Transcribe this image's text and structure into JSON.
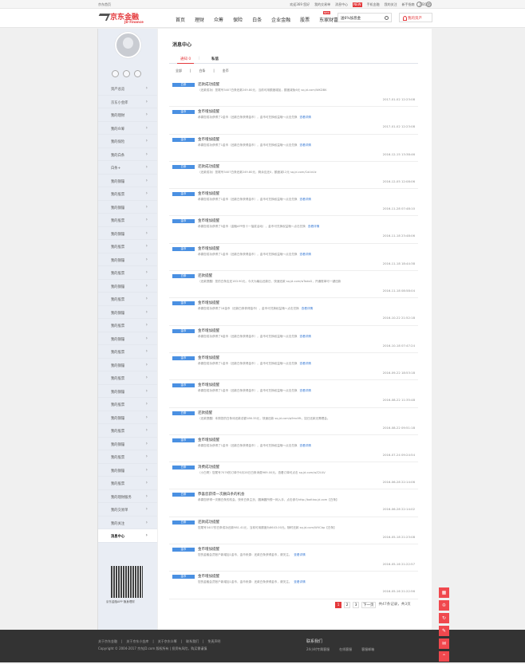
{
  "topbar": {
    "home": "京东首页",
    "links": [
      "欢迎369 您好",
      "我的交易单",
      "消息中心",
      "手机金融",
      "我的关注",
      "新手指南",
      "JTB导航"
    ],
    "new_badge": "NEW"
  },
  "header": {
    "logo_cn": "京东金融",
    "logo_en": "JD Finance",
    "nav": [
      "首页",
      "理财",
      "众筹",
      "保险",
      "白条",
      "企业金融",
      "股票",
      "东家财富"
    ],
    "nav_badge": "NEW",
    "search_value": "送6%加息金",
    "asset_button": "我的资产"
  },
  "sidebar": {
    "items": [
      "资产总览",
      "京东小金库",
      "我的理财",
      "我的众筹",
      "我的保险",
      "我的白条",
      "白条+",
      "我的钢镚",
      "我的股票",
      "我的钢镚",
      "我的股票",
      "我的钢镚",
      "我的股票",
      "我的钢镚",
      "我的股票",
      "我的钢镚",
      "我的股票",
      "我的钢镚",
      "我的股票",
      "我的钢镚",
      "我的股票",
      "我的钢镚",
      "我的股票",
      "我的钢镚",
      "我的股票",
      "我的钢镚",
      "我的股票",
      "我的钢镚",
      "我的股票",
      "我的钢镚",
      "我的股票",
      "我的理财服务",
      "我的交易单",
      "我的关注",
      "消息中心"
    ],
    "active": "消息中心",
    "qr_caption": "京东金融APP 随身理财"
  },
  "main": {
    "title": "消息中心",
    "tabs": {
      "notice": "通知 0",
      "private": "私信"
    },
    "filters": [
      "全部",
      "白条",
      "金币"
    ],
    "messages": [
      {
        "tag": "白条",
        "title": "还款成功提醒",
        "body": "（还款成功）您尾号3407白条还款249.80元，当前可用额度增加，额度减免6元 sq.jd.com/WKDBK",
        "link": "",
        "time": "2017-01-02 12:23:08"
      },
      {
        "tag": "金币",
        "title": "金币增加提醒",
        "body": "恭喜您成功获得了2金币（还款白条获得金币），金币可兑换权益哦～点击兑换",
        "link": "查看详情",
        "time": "2017-01-02 12:23:08"
      },
      {
        "tag": "金币",
        "title": "金币增加提醒",
        "body": "恭喜您成功获得了1金币（还款白条获得金币），金币可兑换权益哦～点击兑换",
        "link": "查看详情",
        "time": "2016-12-15 13:38:46"
      },
      {
        "tag": "白条",
        "title": "还款成功提醒",
        "body": "（还款成功）您尾号3407白条还款249.80元，剩余应还0，额度减12元 sq.jd.com/CoUvUz",
        "link": "",
        "time": "2016-12-05 12:08:06"
      },
      {
        "tag": "金币",
        "title": "金币增加提醒",
        "body": "恭喜您成功获得了1金币（还款白条获得金币），金币可兑换权益哦～点击兑换",
        "link": "查看详情",
        "time": "2016-11-28 07:48:10"
      },
      {
        "tag": "金币",
        "title": "金币增加提醒",
        "body": "恭喜您成功获得了5金币（金融APP双十一抽奖活动），金币可兑换权益哦～点击兑换",
        "link": "查看详情",
        "time": "2016-11-18 23:48:06"
      },
      {
        "tag": "金币",
        "title": "金币增加提醒",
        "body": "恭喜您成功获得了1金币（还款白条获得金币），金币可兑换权益哦～点击兑换",
        "link": "查看详情",
        "time": "2016-11-18 18:44:38"
      },
      {
        "tag": "白条",
        "title": "还款提醒",
        "body": "（还款提醒）您的白条应还183.90元，今天为最后还款日，快速还款 sq.jd.com/wTodoG，开通账单可一键还款",
        "link": "",
        "time": "2016-11-18 08:58:04"
      },
      {
        "tag": "金币",
        "title": "金币增加提醒",
        "body": "恭喜您成功获得了18金币（还款白条获得金币），金币可兑换权益哦～点击兑换",
        "link": "查看详情",
        "time": "2016-10-22 21:52:18"
      },
      {
        "tag": "金币",
        "title": "金币增加提醒",
        "body": "恭喜您成功获得了6金币（还款白条获得金币），金币可兑换权益哦～点击兑换",
        "link": "查看详情",
        "time": "2016-10-18 07:47:24"
      },
      {
        "tag": "金币",
        "title": "金币增加提醒",
        "body": "恭喜您成功获得了1金币（还款白条获得金币），金币可兑换权益哦～点击兑换",
        "link": "查看详情",
        "time": "2016-09-22 18:53:18"
      },
      {
        "tag": "金币",
        "title": "金币增加提醒",
        "body": "恭喜您成功获得了1金币（还款白条获得金币），金币可兑换权益哦～点击兑换",
        "link": "查看详情",
        "time": "2016-08-22 11:35:48"
      },
      {
        "tag": "白条",
        "title": "还款提醒",
        "body": "（还款提醒）本周您的白条待还款总额186.35元，快速还款 sq.jd.com/q9mcMt，如已还款无需理会。",
        "link": "",
        "time": "2016-08-22 09:51:18"
      },
      {
        "tag": "金币",
        "title": "金币增加提醒",
        "body": "恭喜您成功获得了1金币（还款白条获得金币），金币可兑换权益哦～点击兑换",
        "link": "查看详情",
        "time": "2016-07-24 09:24:54"
      },
      {
        "tag": "白条",
        "title": "消费成功提醒",
        "body": "（小白哥）您尾号7076的订单于6月28日白条消费969.00元。查看订单可点击 sq.jd.com/wZ2ULV",
        "link": "",
        "time": "2016-06-28 22:14:06"
      },
      {
        "tag": "白条",
        "title": "恭喜您获得一次删白条的机会",
        "body": "恭喜您获得一次删白条的机会，快来白条主页，圆满圆所想一网入手，点击参与http://baitiao.jd.com【白条】",
        "link": "",
        "time": "2016-06-28 22:14:02"
      },
      {
        "tag": "白条",
        "title": "还款成功提醒",
        "body": "您尾号3407的白条成功还款981.41元，当前可用额度为8643.00元。随时还款 sq.jd.com/WVCbp【白条】",
        "link": "",
        "time": "2016-05-18 21:23:08"
      },
      {
        "tag": "金币",
        "title": "金币增加提醒",
        "body": "您的金融会员账户新增加1金币，金币来源：还款白条获得金币，请关注。",
        "link": "查看详情",
        "time": "2016-05-16 21:22:57"
      },
      {
        "tag": "金币",
        "title": "金币增加提醒",
        "body": "您的金融会员账户新增加1金币，金币来源：还款白条获得金币，请关注。",
        "link": "查看详情",
        "time": "2016-05-16 21:22:56"
      }
    ],
    "pagination": {
      "pages": [
        "1",
        "2",
        "3"
      ],
      "current": "1",
      "next": "下一页",
      "info": "共47条记录，共3页"
    }
  },
  "footer": {
    "links": [
      "关于京东金融",
      "关于京东小金库",
      "关于京东众筹",
      "联系我们",
      "免责声明"
    ],
    "copyright": "Copyright © 2004-2017 京东JD.com 版权所有 | 投资有风险，购买需谨慎",
    "contact_title": "联系我们",
    "contact": [
      "24小时专属客服",
      "在线客服",
      "客服邮箱"
    ]
  },
  "float_buttons": [
    "qr-icon",
    "bell-icon",
    "refresh-icon",
    "edit-icon",
    "feedback-icon",
    "top-icon"
  ],
  "colors": {
    "accent": "#e4393c",
    "tag": "#4a90e2",
    "sidebar": "#e9edf4",
    "footer": "#333333"
  }
}
